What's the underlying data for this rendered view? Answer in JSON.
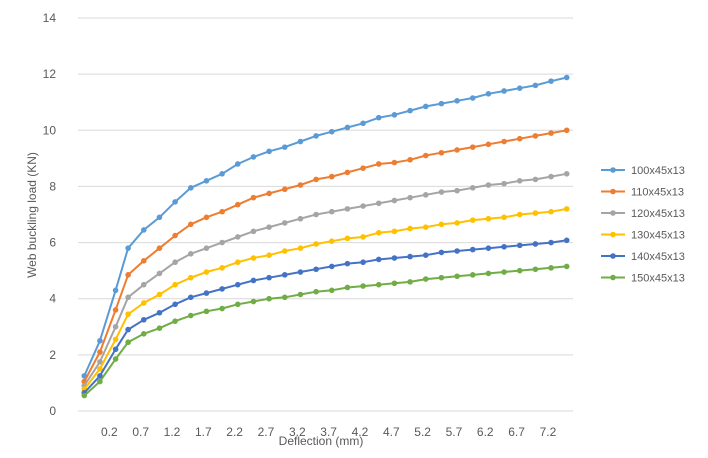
{
  "chart_data": {
    "type": "line",
    "title": "",
    "xlabel": "Deflection (mm)",
    "ylabel": "Web buckling load (KN)",
    "ylim": [
      0,
      14
    ],
    "y_ticks": [
      0,
      2,
      4,
      6,
      8,
      10,
      12,
      14
    ],
    "x_tick_labels": [
      "0.2",
      "0.7",
      "1.2",
      "1.7",
      "2.2",
      "2.7",
      "3.2",
      "3.7",
      "4.2",
      "4.7",
      "5.2",
      "5.7",
      "6.2",
      "6.7",
      "7.2"
    ],
    "x_tick_values": [
      0.2,
      0.7,
      1.2,
      1.7,
      2.2,
      2.7,
      3.2,
      3.7,
      4.2,
      4.7,
      5.2,
      5.7,
      6.2,
      6.7,
      7.2
    ],
    "xlim": [
      -0.3,
      7.6
    ],
    "grid": "horizontal",
    "legend": "right",
    "x": [
      -0.2,
      0.05,
      0.3,
      0.5,
      0.75,
      1.0,
      1.25,
      1.5,
      1.75,
      2.0,
      2.25,
      2.5,
      2.75,
      3.0,
      3.25,
      3.5,
      3.75,
      4.0,
      4.25,
      4.5,
      4.75,
      5.0,
      5.25,
      5.5,
      5.75,
      6.0,
      6.25,
      6.5,
      6.75,
      7.0,
      7.25,
      7.5
    ],
    "series": [
      {
        "name": "100x45x13",
        "color": "#5B9BD5",
        "values": [
          1.25,
          2.5,
          4.3,
          5.8,
          6.45,
          6.9,
          7.45,
          7.95,
          8.2,
          8.45,
          8.8,
          9.05,
          9.25,
          9.4,
          9.6,
          9.8,
          9.95,
          10.1,
          10.25,
          10.45,
          10.55,
          10.7,
          10.85,
          10.95,
          11.05,
          11.15,
          11.3,
          11.4,
          11.5,
          11.6,
          11.75,
          11.88
        ]
      },
      {
        "name": "110x45x13",
        "color": "#ED7D31",
        "values": [
          1.05,
          2.1,
          3.6,
          4.85,
          5.35,
          5.8,
          6.25,
          6.65,
          6.9,
          7.1,
          7.35,
          7.6,
          7.75,
          7.9,
          8.05,
          8.25,
          8.35,
          8.5,
          8.65,
          8.8,
          8.85,
          8.95,
          9.1,
          9.2,
          9.3,
          9.4,
          9.5,
          9.6,
          9.7,
          9.8,
          9.9,
          10.0
        ]
      },
      {
        "name": "120x45x13",
        "color": "#A5A5A5",
        "values": [
          0.9,
          1.75,
          3.0,
          4.05,
          4.5,
          4.9,
          5.3,
          5.6,
          5.8,
          6.0,
          6.2,
          6.4,
          6.55,
          6.7,
          6.85,
          7.0,
          7.1,
          7.2,
          7.3,
          7.4,
          7.5,
          7.6,
          7.7,
          7.8,
          7.85,
          7.95,
          8.05,
          8.1,
          8.2,
          8.25,
          8.35,
          8.45
        ]
      },
      {
        "name": "130x45x13",
        "color": "#FFC000",
        "values": [
          0.78,
          1.5,
          2.55,
          3.45,
          3.85,
          4.15,
          4.5,
          4.75,
          4.95,
          5.1,
          5.3,
          5.45,
          5.55,
          5.7,
          5.8,
          5.95,
          6.05,
          6.15,
          6.2,
          6.35,
          6.4,
          6.5,
          6.55,
          6.65,
          6.7,
          6.8,
          6.85,
          6.9,
          7.0,
          7.05,
          7.1,
          7.2
        ]
      },
      {
        "name": "140x45x13",
        "color": "#4472C4",
        "values": [
          0.65,
          1.25,
          2.2,
          2.9,
          3.25,
          3.5,
          3.8,
          4.05,
          4.2,
          4.35,
          4.5,
          4.65,
          4.75,
          4.85,
          4.95,
          5.05,
          5.15,
          5.25,
          5.3,
          5.4,
          5.45,
          5.5,
          5.55,
          5.65,
          5.7,
          5.75,
          5.8,
          5.85,
          5.9,
          5.95,
          6.0,
          6.08
        ]
      },
      {
        "name": "150x45x13",
        "color": "#70AD47",
        "values": [
          0.55,
          1.05,
          1.85,
          2.45,
          2.75,
          2.95,
          3.2,
          3.4,
          3.55,
          3.65,
          3.8,
          3.9,
          4.0,
          4.05,
          4.15,
          4.25,
          4.3,
          4.4,
          4.45,
          4.5,
          4.55,
          4.6,
          4.7,
          4.75,
          4.8,
          4.85,
          4.9,
          4.95,
          5.0,
          5.05,
          5.1,
          5.15
        ]
      }
    ]
  }
}
